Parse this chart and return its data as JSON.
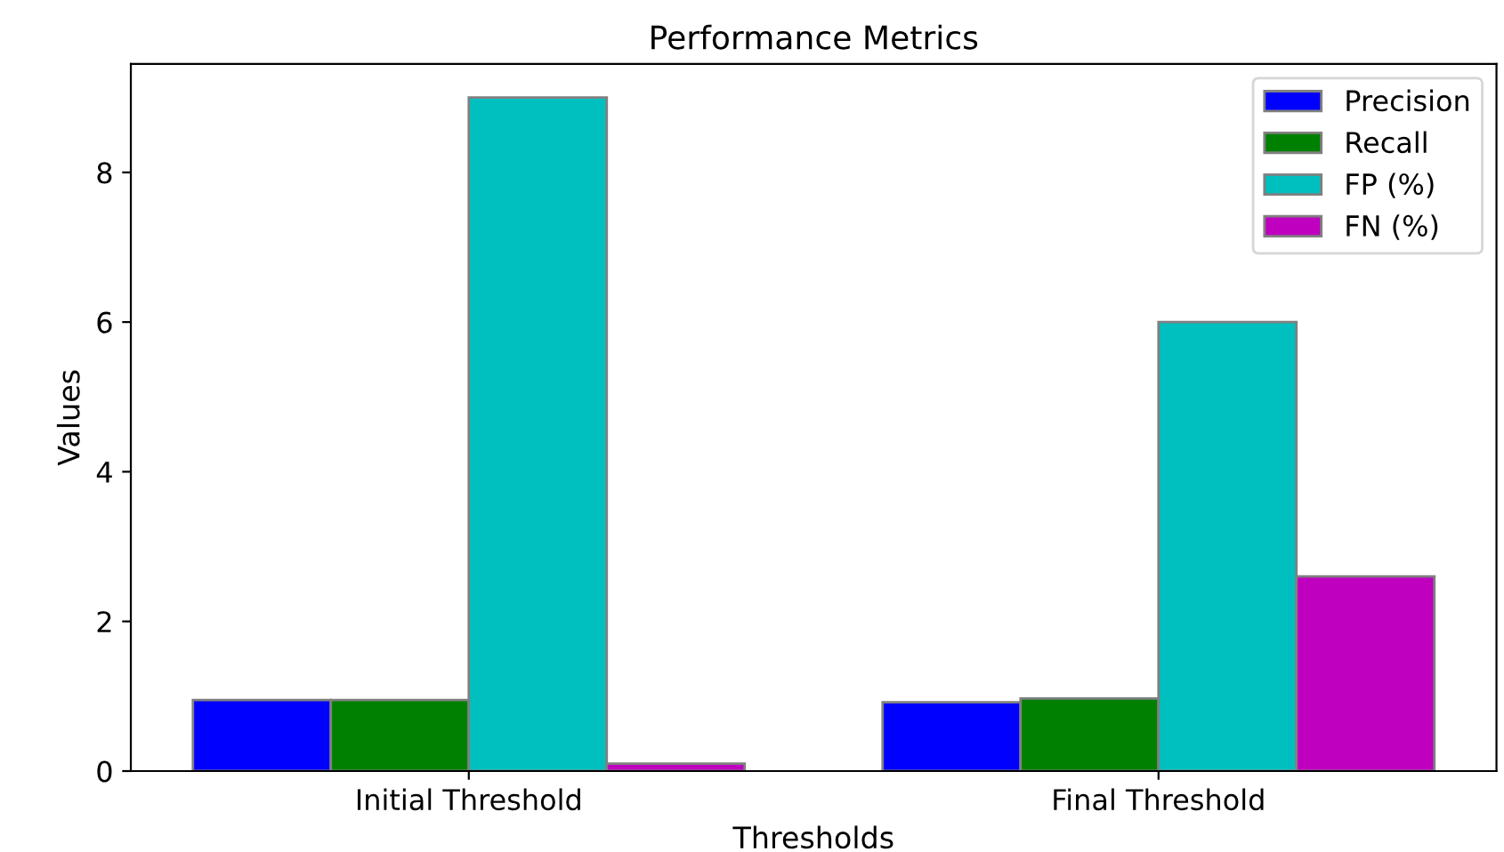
{
  "chart_data": {
    "type": "bar",
    "title": "Performance Metrics",
    "xlabel": "Thresholds",
    "ylabel": "Values",
    "categories": [
      "Initial Threshold",
      "Final Threshold"
    ],
    "series": [
      {
        "name": "Precision",
        "color": "#0000ff",
        "values": [
          0.95,
          0.92
        ]
      },
      {
        "name": "Recall",
        "color": "#008000",
        "values": [
          0.95,
          0.97
        ]
      },
      {
        "name": "FP (%)",
        "color": "#00bfbf",
        "values": [
          9.0,
          6.0
        ]
      },
      {
        "name": "FN (%)",
        "color": "#bf00bf",
        "values": [
          0.1,
          2.6
        ]
      }
    ],
    "ylim": [
      0,
      9.45
    ],
    "yticks": [
      0,
      2,
      4,
      6,
      8
    ],
    "legend": "top right",
    "grid": false
  }
}
